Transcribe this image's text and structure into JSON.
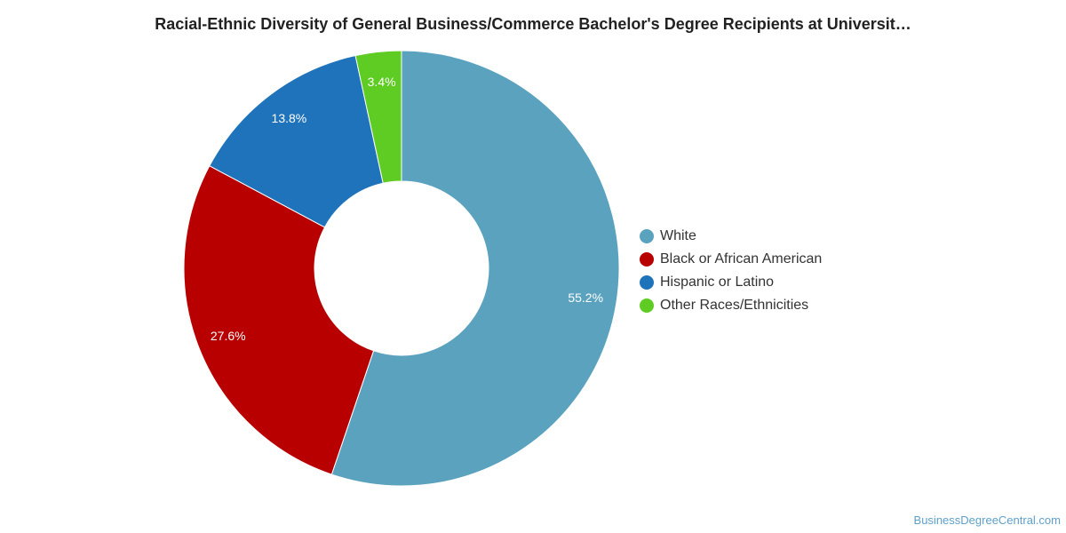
{
  "chart_data": {
    "type": "pie",
    "title": "Racial-Ethnic Diversity of General Business/Commerce Bachelor's Degree Recipients at Universit…",
    "donut": true,
    "legend_position": "right",
    "slices": [
      {
        "label": "White",
        "value": 55.2,
        "display": "55.2%",
        "color": "#5ba2bf"
      },
      {
        "label": "Black or African American",
        "value": 27.6,
        "display": "27.6%",
        "color": "#b90000"
      },
      {
        "label": "Hispanic or Latino",
        "value": 13.8,
        "display": "13.8%",
        "color": "#1f73ba"
      },
      {
        "label": "Other Races/Ethnicities",
        "value": 3.4,
        "display": "3.4%",
        "color": "#5fcc23"
      }
    ]
  },
  "legend": {
    "items": [
      "White",
      "Black or African American",
      "Hispanic or Latino",
      "Other Races/Ethnicities"
    ]
  },
  "footer": {
    "source": "BusinessDegreeCentral.com"
  }
}
